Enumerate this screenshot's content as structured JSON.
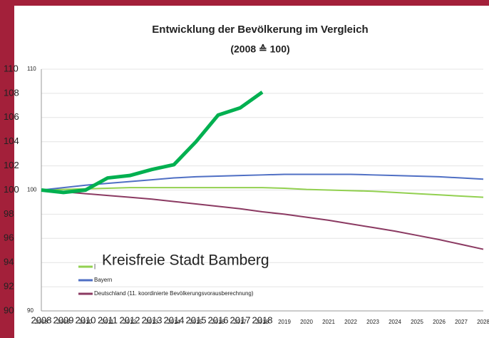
{
  "chart_data": {
    "type": "line",
    "title": "Entwicklung der Bevölkerung im Vergleich",
    "subtitle": "(2008 ≙ 100)",
    "annotation": "Kreisfreie Stadt Bamberg",
    "x": [
      2008,
      2009,
      2010,
      2011,
      2012,
      2013,
      2014,
      2015,
      2016,
      2017,
      2018,
      2019,
      2020,
      2021,
      2022,
      2023,
      2024,
      2025,
      2026,
      2027,
      2028
    ],
    "xticks_large": [
      2008,
      2009,
      2010,
      2011,
      2012,
      2013,
      2014,
      2015,
      2016,
      2017,
      2018
    ],
    "xlim": [
      2008,
      2028
    ],
    "ylim": [
      90,
      110
    ],
    "yticks": [
      90,
      92,
      94,
      96,
      98,
      100,
      102,
      104,
      106,
      108,
      110
    ],
    "yticks_small": [
      90,
      100,
      110
    ],
    "grid": true,
    "series": [
      {
        "name": "|",
        "color": "#92d050",
        "width": 2,
        "values": [
          100,
          100.05,
          100.1,
          100.15,
          100.2,
          100.2,
          100.2,
          100.2,
          100.2,
          100.2,
          100.2,
          100.15,
          100.05,
          100,
          99.95,
          99.9,
          99.8,
          99.7,
          99.6,
          99.5,
          99.4
        ]
      },
      {
        "name": "Bayern",
        "color": "#4f6fc4",
        "width": 2,
        "values": [
          100,
          100.2,
          100.4,
          100.55,
          100.7,
          100.85,
          101,
          101.1,
          101.15,
          101.2,
          101.25,
          101.3,
          101.3,
          101.3,
          101.3,
          101.25,
          101.2,
          101.15,
          101.1,
          101,
          100.9
        ]
      },
      {
        "name": "Deutschland (11. koordinierte Bevölkerungsvorausberechnung)",
        "color": "#8b3a62",
        "width": 2,
        "values": [
          100,
          99.85,
          99.7,
          99.55,
          99.4,
          99.25,
          99.05,
          98.85,
          98.65,
          98.45,
          98.2,
          98,
          97.75,
          97.5,
          97.2,
          96.9,
          96.6,
          96.25,
          95.9,
          95.5,
          95.1
        ]
      },
      {
        "color": "#00b050",
        "width": 5,
        "values": [
          100,
          99.8,
          100,
          101,
          101.2,
          101.7,
          102.1,
          104,
          106.2,
          106.8,
          108.1,
          null,
          null,
          null,
          null,
          null,
          null,
          null,
          null,
          null,
          null
        ]
      }
    ]
  }
}
